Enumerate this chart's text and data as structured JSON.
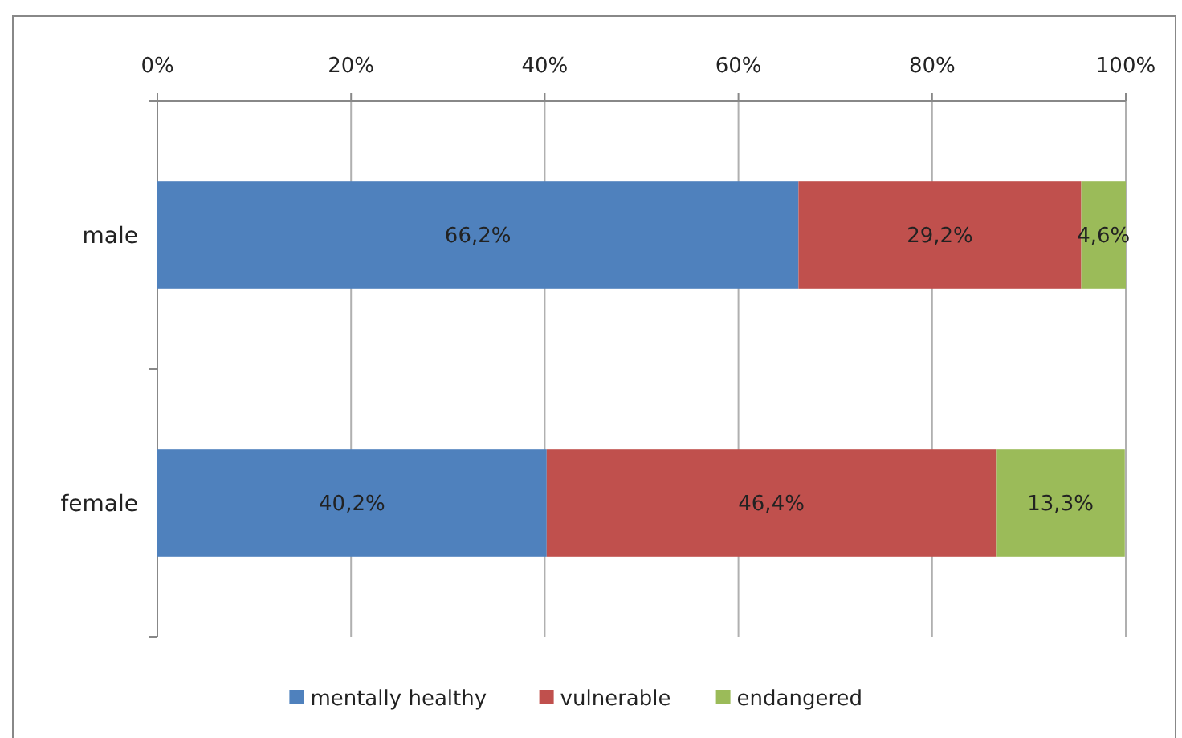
{
  "chart_data": {
    "type": "bar",
    "orientation": "horizontal",
    "stacked": true,
    "categories": [
      "male",
      "female"
    ],
    "series": [
      {
        "name": "mentally healthy",
        "color": "#4f81bd",
        "values": [
          66.2,
          40.2
        ],
        "value_labels": [
          "66,2%",
          "40,2%"
        ]
      },
      {
        "name": "vulnerable",
        "color": "#c0504d",
        "values": [
          29.2,
          46.4
        ],
        "value_labels": [
          "29,2%",
          "46,4%"
        ]
      },
      {
        "name": "endangered",
        "color": "#9bbb59",
        "values": [
          4.6,
          13.3
        ],
        "value_labels": [
          "4,6%",
          "13,3%"
        ]
      }
    ],
    "xlim": [
      0,
      100
    ],
    "xticks": [
      {
        "value": 0,
        "label": "0%"
      },
      {
        "value": 20,
        "label": "20%"
      },
      {
        "value": 40,
        "label": "40%"
      },
      {
        "value": 60,
        "label": "60%"
      },
      {
        "value": 80,
        "label": "80%"
      },
      {
        "value": 100,
        "label": "100%"
      }
    ],
    "grid": "x",
    "legend": "bottom"
  }
}
